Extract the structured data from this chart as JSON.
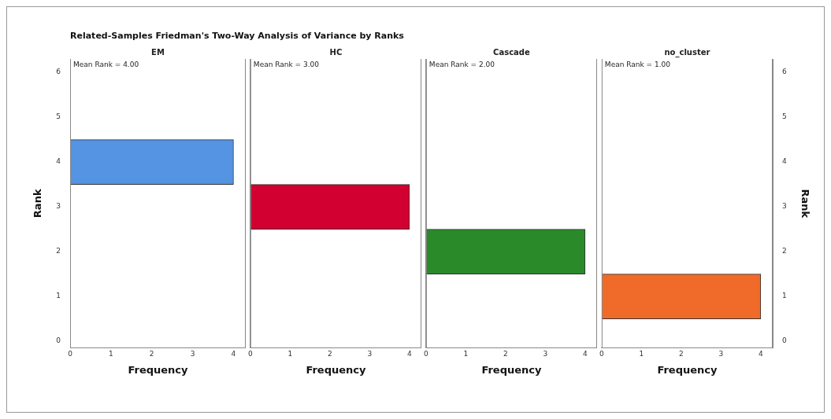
{
  "chart_data": [
    {
      "type": "histogram",
      "orientation": "horizontal",
      "title": "Related-Samples Friedman's Two-Way Analysis of Variance by Ranks",
      "subtitle": "EM",
      "xlabel": "Frequency",
      "ylabel": "Rank",
      "bins": [
        0.5,
        1.5,
        2.5,
        3.5,
        4.5
      ],
      "values": [
        0,
        0,
        0,
        4
      ],
      "color": "#5593e3",
      "xlim": [
        0,
        4.3
      ],
      "xticks": [
        0,
        1,
        2,
        3,
        4
      ],
      "ylim": [
        -0.15,
        6.3
      ],
      "yticks": [
        0,
        1,
        2,
        3,
        4,
        5,
        6
      ],
      "annotations": [
        "Mean Rank = 4.00"
      ]
    },
    {
      "type": "histogram",
      "orientation": "horizontal",
      "subtitle": "HC",
      "xlabel": "Frequency",
      "bins": [
        0.5,
        1.5,
        2.5,
        3.5,
        4.5
      ],
      "values": [
        0,
        0,
        4,
        0
      ],
      "color": "#d20030",
      "xlim": [
        0,
        4.3
      ],
      "xticks": [
        0,
        1,
        2,
        3,
        4
      ],
      "ylim": [
        -0.15,
        6.3
      ],
      "tick_labels": "x",
      "annotations": [
        "Mean Rank = 3.00"
      ]
    },
    {
      "type": "histogram",
      "orientation": "horizontal",
      "subtitle": "Cascade",
      "xlabel": "Frequency",
      "bins": [
        0.5,
        1.5,
        2.5,
        3.5,
        4.5
      ],
      "values": [
        0,
        4,
        0,
        0
      ],
      "color": "#2a8a2a",
      "xlim": [
        0,
        4.3
      ],
      "xticks": [
        0,
        1,
        2,
        3,
        4
      ],
      "ylim": [
        -0.15,
        6.3
      ],
      "tick_labels": "x",
      "annotations": [
        "Mean Rank = 2.00"
      ]
    },
    {
      "type": "histogram",
      "orientation": "horizontal",
      "subtitle": "no_cluster",
      "xlabel": "Frequency",
      "ylabel": "Rank",
      "bins": [
        0.5,
        1.5,
        2.5,
        3.5,
        4.5
      ],
      "values": [
        4,
        0,
        0,
        0
      ],
      "color": "#f06a2a",
      "xlim": [
        0,
        4.3
      ],
      "xticks": [
        0,
        1,
        2,
        3,
        4
      ],
      "ylim": [
        -0.15,
        6.3
      ],
      "yticks": [
        0,
        1,
        2,
        3,
        4,
        5,
        6
      ],
      "annotations": [
        "Mean Rank = 1.00"
      ]
    }
  ]
}
